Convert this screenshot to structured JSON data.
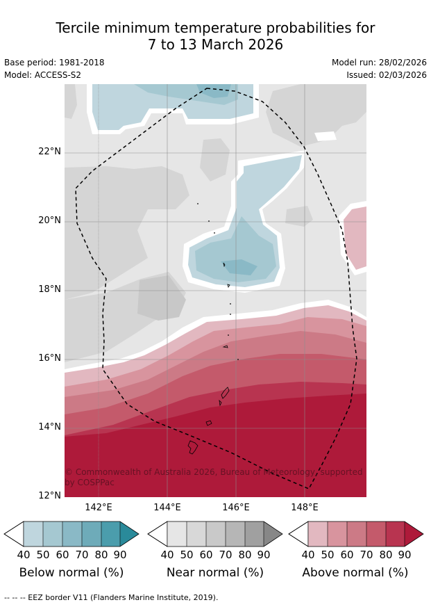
{
  "title_line1": "Tercile minimum temperature probabilities for",
  "title_line2": "7 to 13 March 2026",
  "meta": {
    "base_period": "Base period: 1981-2018",
    "model": "Model: ACCESS-S2",
    "model_run": "Model run: 28/02/2026",
    "issued": "Issued: 02/03/2026"
  },
  "axes": {
    "lat_labels": [
      "22°N",
      "20°N",
      "18°N",
      "16°N",
      "14°N",
      "12°N"
    ],
    "lon_labels": [
      "142°E",
      "144°E",
      "146°E",
      "148°E"
    ]
  },
  "copyright": "© Commonwealth of Australia 2026, Bureau of Meteorology, supported by COSPPac",
  "colorbars": [
    {
      "label": "Below normal (%)",
      "ticks": [
        "40",
        "50",
        "60",
        "70",
        "80",
        "90"
      ],
      "colors": [
        "#bfd6de",
        "#a5c8d1",
        "#8ab9c6",
        "#6eabb9",
        "#4b9dac",
        "#2a8a9a"
      ]
    },
    {
      "label": "Near normal (%)",
      "ticks": [
        "40",
        "50",
        "60",
        "70",
        "80",
        "90"
      ],
      "colors": [
        "#e6e6e6",
        "#d8d8d8",
        "#c9c9c9",
        "#b6b6b6",
        "#a0a0a0",
        "#878787"
      ]
    },
    {
      "label": "Above normal (%)",
      "ticks": [
        "40",
        "50",
        "60",
        "70",
        "80",
        "90"
      ],
      "colors": [
        "#e2b8c0",
        "#d8949e",
        "#cc7a86",
        "#c45a6b",
        "#b83450",
        "#ae1a3a"
      ]
    }
  ],
  "footnote": "--  --  -- EEZ border V11 (Flanders Marine Institute, 2019)."
}
